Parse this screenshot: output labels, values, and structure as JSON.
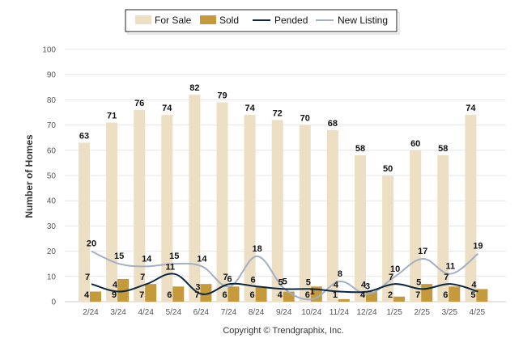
{
  "chart_data": {
    "type": "bar",
    "title": "",
    "xlabel": "",
    "ylabel": "Number of Homes",
    "ylim": [
      0,
      100
    ],
    "yticks": [
      0,
      10,
      20,
      30,
      40,
      50,
      60,
      70,
      80,
      90,
      100
    ],
    "grid": true,
    "legend_position": "top-center",
    "categories": [
      "2/24",
      "3/24",
      "4/24",
      "5/24",
      "6/24",
      "7/24",
      "8/24",
      "9/24",
      "10/24",
      "11/24",
      "12/24",
      "1/25",
      "2/25",
      "3/25",
      "4/25"
    ],
    "series": [
      {
        "name": "For Sale",
        "kind": "bar",
        "color": "#ecdfc3",
        "values": [
          63,
          71,
          76,
          74,
          82,
          79,
          74,
          72,
          70,
          68,
          58,
          50,
          60,
          58,
          74
        ]
      },
      {
        "name": "Sold",
        "kind": "bar",
        "color": "#c49a3c",
        "values": [
          4,
          9,
          7,
          6,
          7,
          6,
          6,
          4,
          6,
          1,
          4,
          2,
          7,
          6,
          5
        ]
      },
      {
        "name": "Pended",
        "kind": "line",
        "color": "#0d2740",
        "values": [
          7,
          4,
          7,
          11,
          3,
          7,
          6,
          5,
          5,
          4,
          4,
          7,
          5,
          7,
          4
        ]
      },
      {
        "name": "New Listing",
        "kind": "line",
        "color": "#a3afc4",
        "values": [
          20,
          15,
          14,
          15,
          14,
          6,
          18,
          5,
          1,
          8,
          3,
          10,
          17,
          11,
          19
        ]
      }
    ],
    "footer": "Copyright © Trendgraphix, Inc."
  }
}
